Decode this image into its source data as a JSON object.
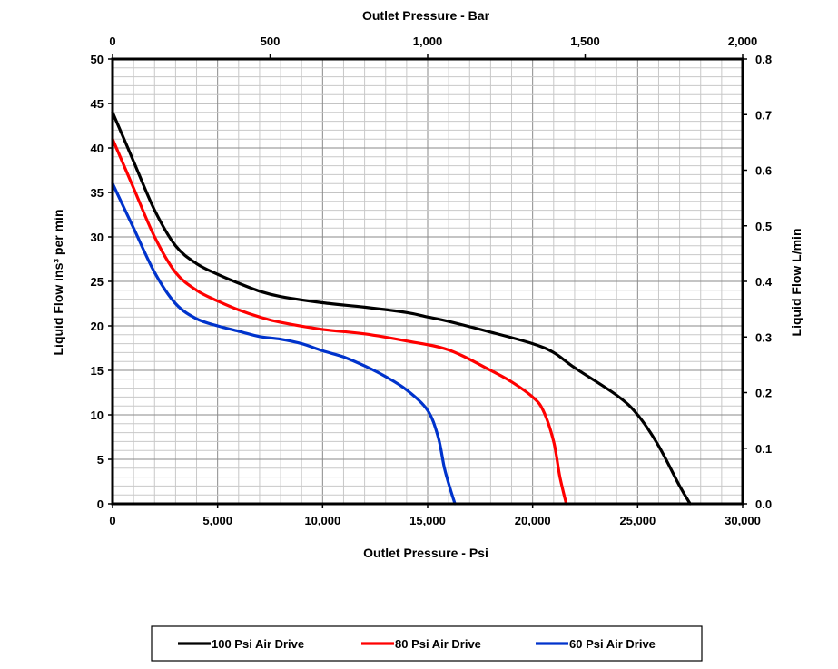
{
  "chart_data": {
    "type": "line",
    "title": "",
    "xlabel": "Outlet Pressure - Psi",
    "ylabel": "Liquid Flow ins³ per min",
    "x2label": "Outlet Pressure - Bar",
    "y2label": "Liquid Flow L/min",
    "xlim": [
      0,
      30000
    ],
    "ylim": [
      0,
      50
    ],
    "x2lim": [
      0,
      2000
    ],
    "y2lim": [
      0,
      0.8
    ],
    "xticks": [
      0,
      5000,
      10000,
      15000,
      20000,
      25000,
      30000
    ],
    "xtick_labels": [
      "0",
      "5,000",
      "10,000",
      "15,000",
      "20,000",
      "25,000",
      "30,000"
    ],
    "yticks": [
      0,
      5,
      10,
      15,
      20,
      25,
      30,
      35,
      40,
      45,
      50
    ],
    "ytick_labels": [
      "0",
      "5",
      "10",
      "15",
      "20",
      "25",
      "30",
      "35",
      "40",
      "45",
      "50"
    ],
    "x2ticks": [
      0,
      500,
      1000,
      1500,
      2000
    ],
    "x2tick_labels": [
      "0",
      "500",
      "1,000",
      "1,500",
      "2,000"
    ],
    "y2ticks": [
      0,
      0.1,
      0.2,
      0.3,
      0.4,
      0.5,
      0.6,
      0.7,
      0.8
    ],
    "y2tick_labels": [
      "0.0",
      "0.1",
      "0.2",
      "0.3",
      "0.4",
      "0.5",
      "0.6",
      "0.7",
      "0.8"
    ],
    "grid": true,
    "legend_position": "bottom",
    "series": [
      {
        "name": "100 Psi Air Drive",
        "color": "#000000",
        "points": [
          [
            0,
            44
          ],
          [
            1000,
            38.5
          ],
          [
            2000,
            33
          ],
          [
            3000,
            29
          ],
          [
            4000,
            27
          ],
          [
            5000,
            25.8
          ],
          [
            6000,
            24.8
          ],
          [
            7000,
            23.9
          ],
          [
            8000,
            23.3
          ],
          [
            10000,
            22.6
          ],
          [
            12000,
            22.1
          ],
          [
            14000,
            21.5
          ],
          [
            15000,
            21
          ],
          [
            16000,
            20.5
          ],
          [
            18000,
            19.3
          ],
          [
            20000,
            18
          ],
          [
            21000,
            17
          ],
          [
            22000,
            15.3
          ],
          [
            24000,
            12.2
          ],
          [
            25000,
            10
          ],
          [
            26000,
            6.5
          ],
          [
            27000,
            2
          ],
          [
            27500,
            0
          ]
        ]
      },
      {
        "name": "80 Psi Air Drive",
        "color": "#ff0000",
        "points": [
          [
            0,
            41
          ],
          [
            1000,
            35.5
          ],
          [
            2000,
            30
          ],
          [
            3000,
            26
          ],
          [
            4000,
            24
          ],
          [
            5000,
            22.8
          ],
          [
            6000,
            21.8
          ],
          [
            7000,
            21
          ],
          [
            8000,
            20.4
          ],
          [
            10000,
            19.6
          ],
          [
            12000,
            19.1
          ],
          [
            14000,
            18.3
          ],
          [
            16000,
            17.3
          ],
          [
            18000,
            15
          ],
          [
            19000,
            13.7
          ],
          [
            20000,
            12
          ],
          [
            20500,
            10.5
          ],
          [
            21000,
            7
          ],
          [
            21300,
            3
          ],
          [
            21600,
            0
          ]
        ]
      },
      {
        "name": "60 Psi Air Drive",
        "color": "#0033cc",
        "points": [
          [
            0,
            36
          ],
          [
            1000,
            31
          ],
          [
            2000,
            26
          ],
          [
            3000,
            22.5
          ],
          [
            4000,
            20.8
          ],
          [
            5000,
            20
          ],
          [
            6000,
            19.4
          ],
          [
            7000,
            18.8
          ],
          [
            8000,
            18.5
          ],
          [
            9000,
            18
          ],
          [
            10000,
            17.2
          ],
          [
            11000,
            16.5
          ],
          [
            12000,
            15.5
          ],
          [
            13000,
            14.3
          ],
          [
            14000,
            12.8
          ],
          [
            15000,
            10.5
          ],
          [
            15500,
            7.5
          ],
          [
            15800,
            4
          ],
          [
            16100,
            1.5
          ],
          [
            16300,
            0
          ]
        ]
      }
    ]
  }
}
